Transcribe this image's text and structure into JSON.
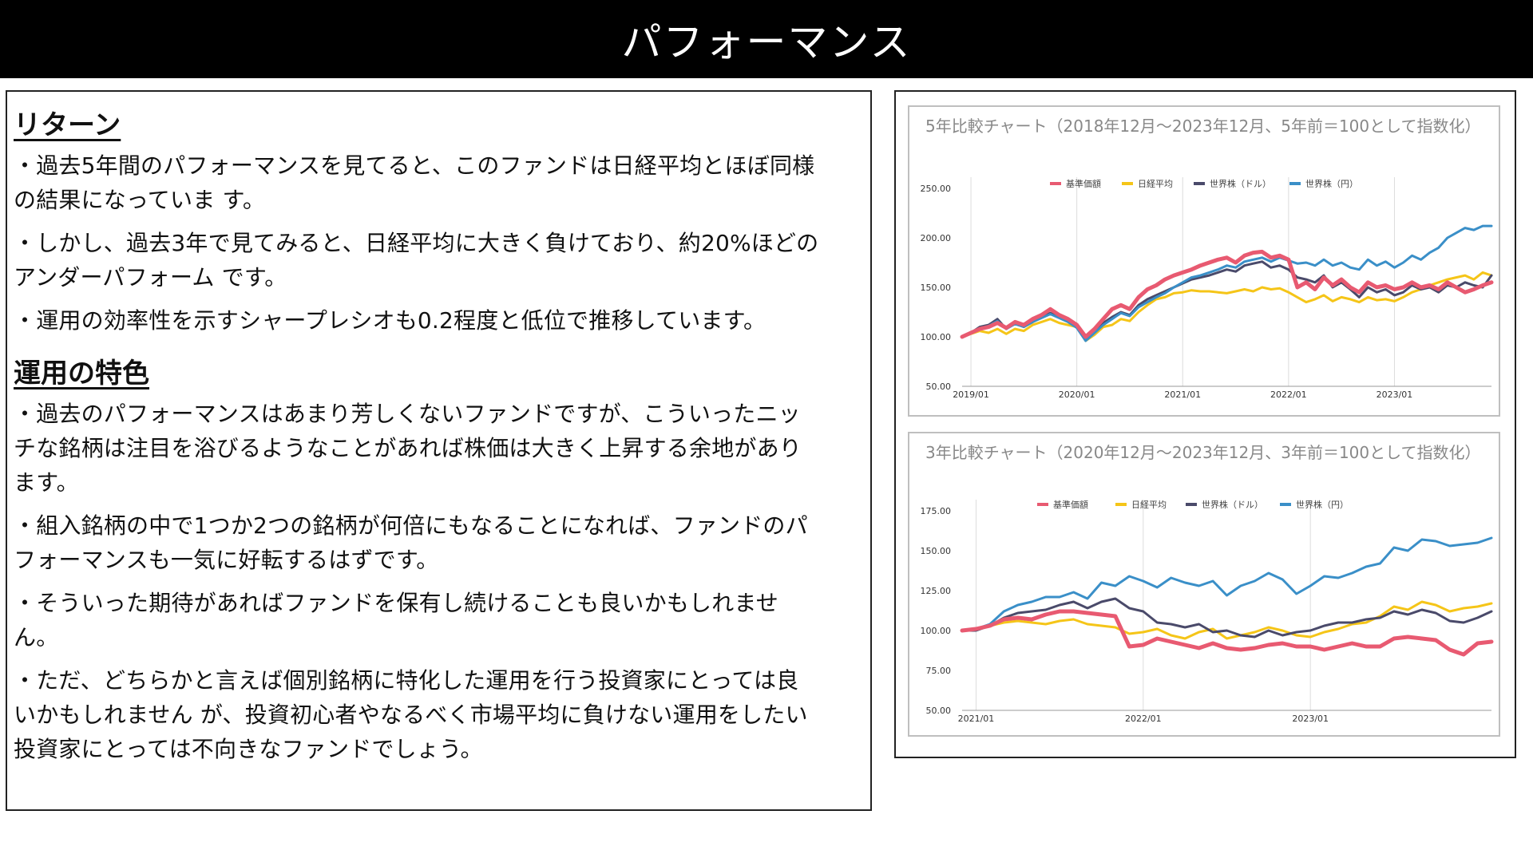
{
  "page": {
    "title": "パフォーマンス"
  },
  "text_panel": {
    "sections": [
      {
        "heading": "リターン",
        "paragraphs": [
          [
            "・過去5年間のパフォーマンスを見てると、このファンドは日経平均とほぼ同様",
            "の結果になっていま す。"
          ],
          [
            "・しかし、過去3年で見てみると、日経平均に大きく負けており、約20%ほどの",
            "アンダーパフォーム です。"
          ],
          [
            "・運用の効率性を示すシャープレシオも0.2程度と低位で推移しています。"
          ]
        ]
      },
      {
        "heading": "運用の特色",
        "paragraphs": [
          [
            "・過去のパフォーマンスはあまり芳しくないファンドですが、こういったニッ",
            "チな銘柄は注目を浴びるようなことがあれば株価は大きく上昇する余地があり",
            "ます。"
          ],
          [
            "・組入銘柄の中で1つか2つの銘柄が何倍にもなることになれば、ファンドのパ",
            "フォーマンスも一気に好転するはずです。"
          ],
          [
            "・そういった期待があればファンドを保有し続けることも良いかもしれませ",
            "ん。"
          ],
          [
            "・ただ、どちらかと言えば個別銘柄に特化した運用を行う投資家にとっては良",
            "いかもしれません が、投資初心者やなるべく市場平均に負けない運用をしたい",
            "投資家にとっては不向きなファンドでしょう。"
          ]
        ]
      }
    ]
  },
  "chart_data": [
    {
      "type": "line",
      "title": "5年比較チャート（2018年12月～2023年12月、5年前＝100として指数化）",
      "ylim": [
        50,
        250
      ],
      "yticks": [
        "50.00",
        "100.00",
        "150.00",
        "200.00",
        "250.00"
      ],
      "xtick_labels": [
        "2019/01",
        "2020/01",
        "2021/01",
        "2022/01",
        "2023/01"
      ],
      "xtick_index": [
        1,
        13,
        25,
        37,
        49
      ],
      "grid": "vertical",
      "legend_position": "top",
      "series": [
        {
          "name": "基準価額",
          "color": "#e85a71",
          "width": 5,
          "values": [
            100,
            104,
            108,
            110,
            114,
            109,
            115,
            112,
            118,
            122,
            128,
            122,
            118,
            112,
            100,
            108,
            118,
            128,
            132,
            128,
            140,
            148,
            152,
            158,
            162,
            165,
            168,
            172,
            175,
            178,
            180,
            175,
            182,
            185,
            186,
            180,
            182,
            178,
            150,
            155,
            148,
            160,
            152,
            158,
            150,
            145,
            155,
            150,
            152,
            148,
            150,
            155,
            150,
            152,
            148,
            155,
            150,
            145,
            148,
            152,
            155
          ]
        },
        {
          "name": "日経平均",
          "color": "#f5c518",
          "width": 3,
          "values": [
            100,
            103,
            106,
            104,
            108,
            103,
            108,
            106,
            112,
            115,
            118,
            114,
            112,
            110,
            96,
            102,
            110,
            112,
            118,
            116,
            125,
            132,
            138,
            140,
            144,
            145,
            147,
            146,
            146,
            145,
            144,
            146,
            148,
            146,
            150,
            148,
            149,
            145,
            140,
            135,
            138,
            142,
            136,
            140,
            138,
            135,
            140,
            137,
            138,
            136,
            140,
            145,
            148,
            152,
            155,
            158,
            160,
            162,
            158,
            165,
            162
          ]
        },
        {
          "name": "世界株（ドル）",
          "color": "#4a4a6a",
          "width": 3,
          "values": [
            100,
            104,
            110,
            112,
            118,
            108,
            114,
            110,
            115,
            120,
            124,
            120,
            116,
            110,
            97,
            105,
            114,
            120,
            125,
            122,
            132,
            138,
            142,
            146,
            150,
            154,
            158,
            160,
            162,
            165,
            168,
            166,
            172,
            174,
            176,
            170,
            172,
            168,
            160,
            158,
            155,
            162,
            150,
            155,
            148,
            140,
            150,
            145,
            148,
            142,
            145,
            152,
            148,
            150,
            145,
            152,
            150,
            155,
            152,
            150,
            162
          ]
        },
        {
          "name": "世界株（円）",
          "color": "#3a8fc8",
          "width": 3,
          "values": [
            100,
            104,
            108,
            111,
            116,
            108,
            113,
            110,
            115,
            119,
            123,
            119,
            115,
            109,
            96,
            104,
            112,
            118,
            124,
            121,
            130,
            135,
            140,
            144,
            150,
            155,
            160,
            162,
            165,
            168,
            172,
            170,
            176,
            178,
            180,
            176,
            180,
            177,
            174,
            175,
            172,
            178,
            172,
            175,
            170,
            168,
            178,
            172,
            176,
            170,
            175,
            182,
            178,
            185,
            190,
            200,
            205,
            210,
            208,
            212,
            212
          ]
        }
      ]
    },
    {
      "type": "line",
      "title": "3年比較チャート（2020年12月～2023年12月、3年前＝100として指数化）",
      "ylim": [
        50,
        175
      ],
      "yticks": [
        "50.00",
        "75.00",
        "100.00",
        "125.00",
        "150.00",
        "175.00"
      ],
      "xtick_labels": [
        "2021/01",
        "2022/01",
        "2023/01"
      ],
      "xtick_index": [
        1,
        13,
        25
      ],
      "grid": "vertical",
      "legend_position": "top",
      "series": [
        {
          "name": "基準価額",
          "color": "#e85a71",
          "width": 5,
          "values": [
            100,
            101,
            103,
            107,
            108,
            107,
            110,
            112,
            112,
            111,
            110,
            109,
            90,
            91,
            95,
            93,
            91,
            89,
            92,
            89,
            88,
            89,
            91,
            92,
            90,
            90,
            88,
            90,
            92,
            90,
            90,
            95,
            96,
            95,
            94,
            88,
            85,
            92,
            93
          ]
        },
        {
          "name": "日経平均",
          "color": "#f5c518",
          "width": 3,
          "values": [
            100,
            101,
            103,
            105,
            106,
            105,
            104,
            106,
            107,
            104,
            103,
            102,
            98,
            99,
            101,
            97,
            95,
            99,
            101,
            95,
            97,
            99,
            102,
            100,
            97,
            96,
            99,
            101,
            104,
            105,
            109,
            115,
            113,
            118,
            116,
            112,
            114,
            115,
            117
          ]
        },
        {
          "name": "世界株（ドル）",
          "color": "#4a4a6a",
          "width": 3,
          "values": [
            100,
            100,
            103,
            108,
            111,
            112,
            113,
            116,
            118,
            114,
            118,
            120,
            114,
            112,
            105,
            104,
            102,
            104,
            99,
            100,
            97,
            96,
            100,
            97,
            99,
            100,
            103,
            105,
            105,
            107,
            108,
            112,
            110,
            113,
            111,
            106,
            105,
            108,
            112
          ]
        },
        {
          "name": "世界株（円）",
          "color": "#3a8fc8",
          "width": 3,
          "values": [
            100,
            101,
            104,
            112,
            116,
            118,
            121,
            121,
            124,
            120,
            130,
            128,
            134,
            131,
            127,
            133,
            130,
            128,
            131,
            122,
            128,
            131,
            136,
            132,
            123,
            128,
            134,
            133,
            136,
            140,
            142,
            152,
            150,
            157,
            156,
            153,
            154,
            155,
            158
          ]
        }
      ]
    }
  ]
}
